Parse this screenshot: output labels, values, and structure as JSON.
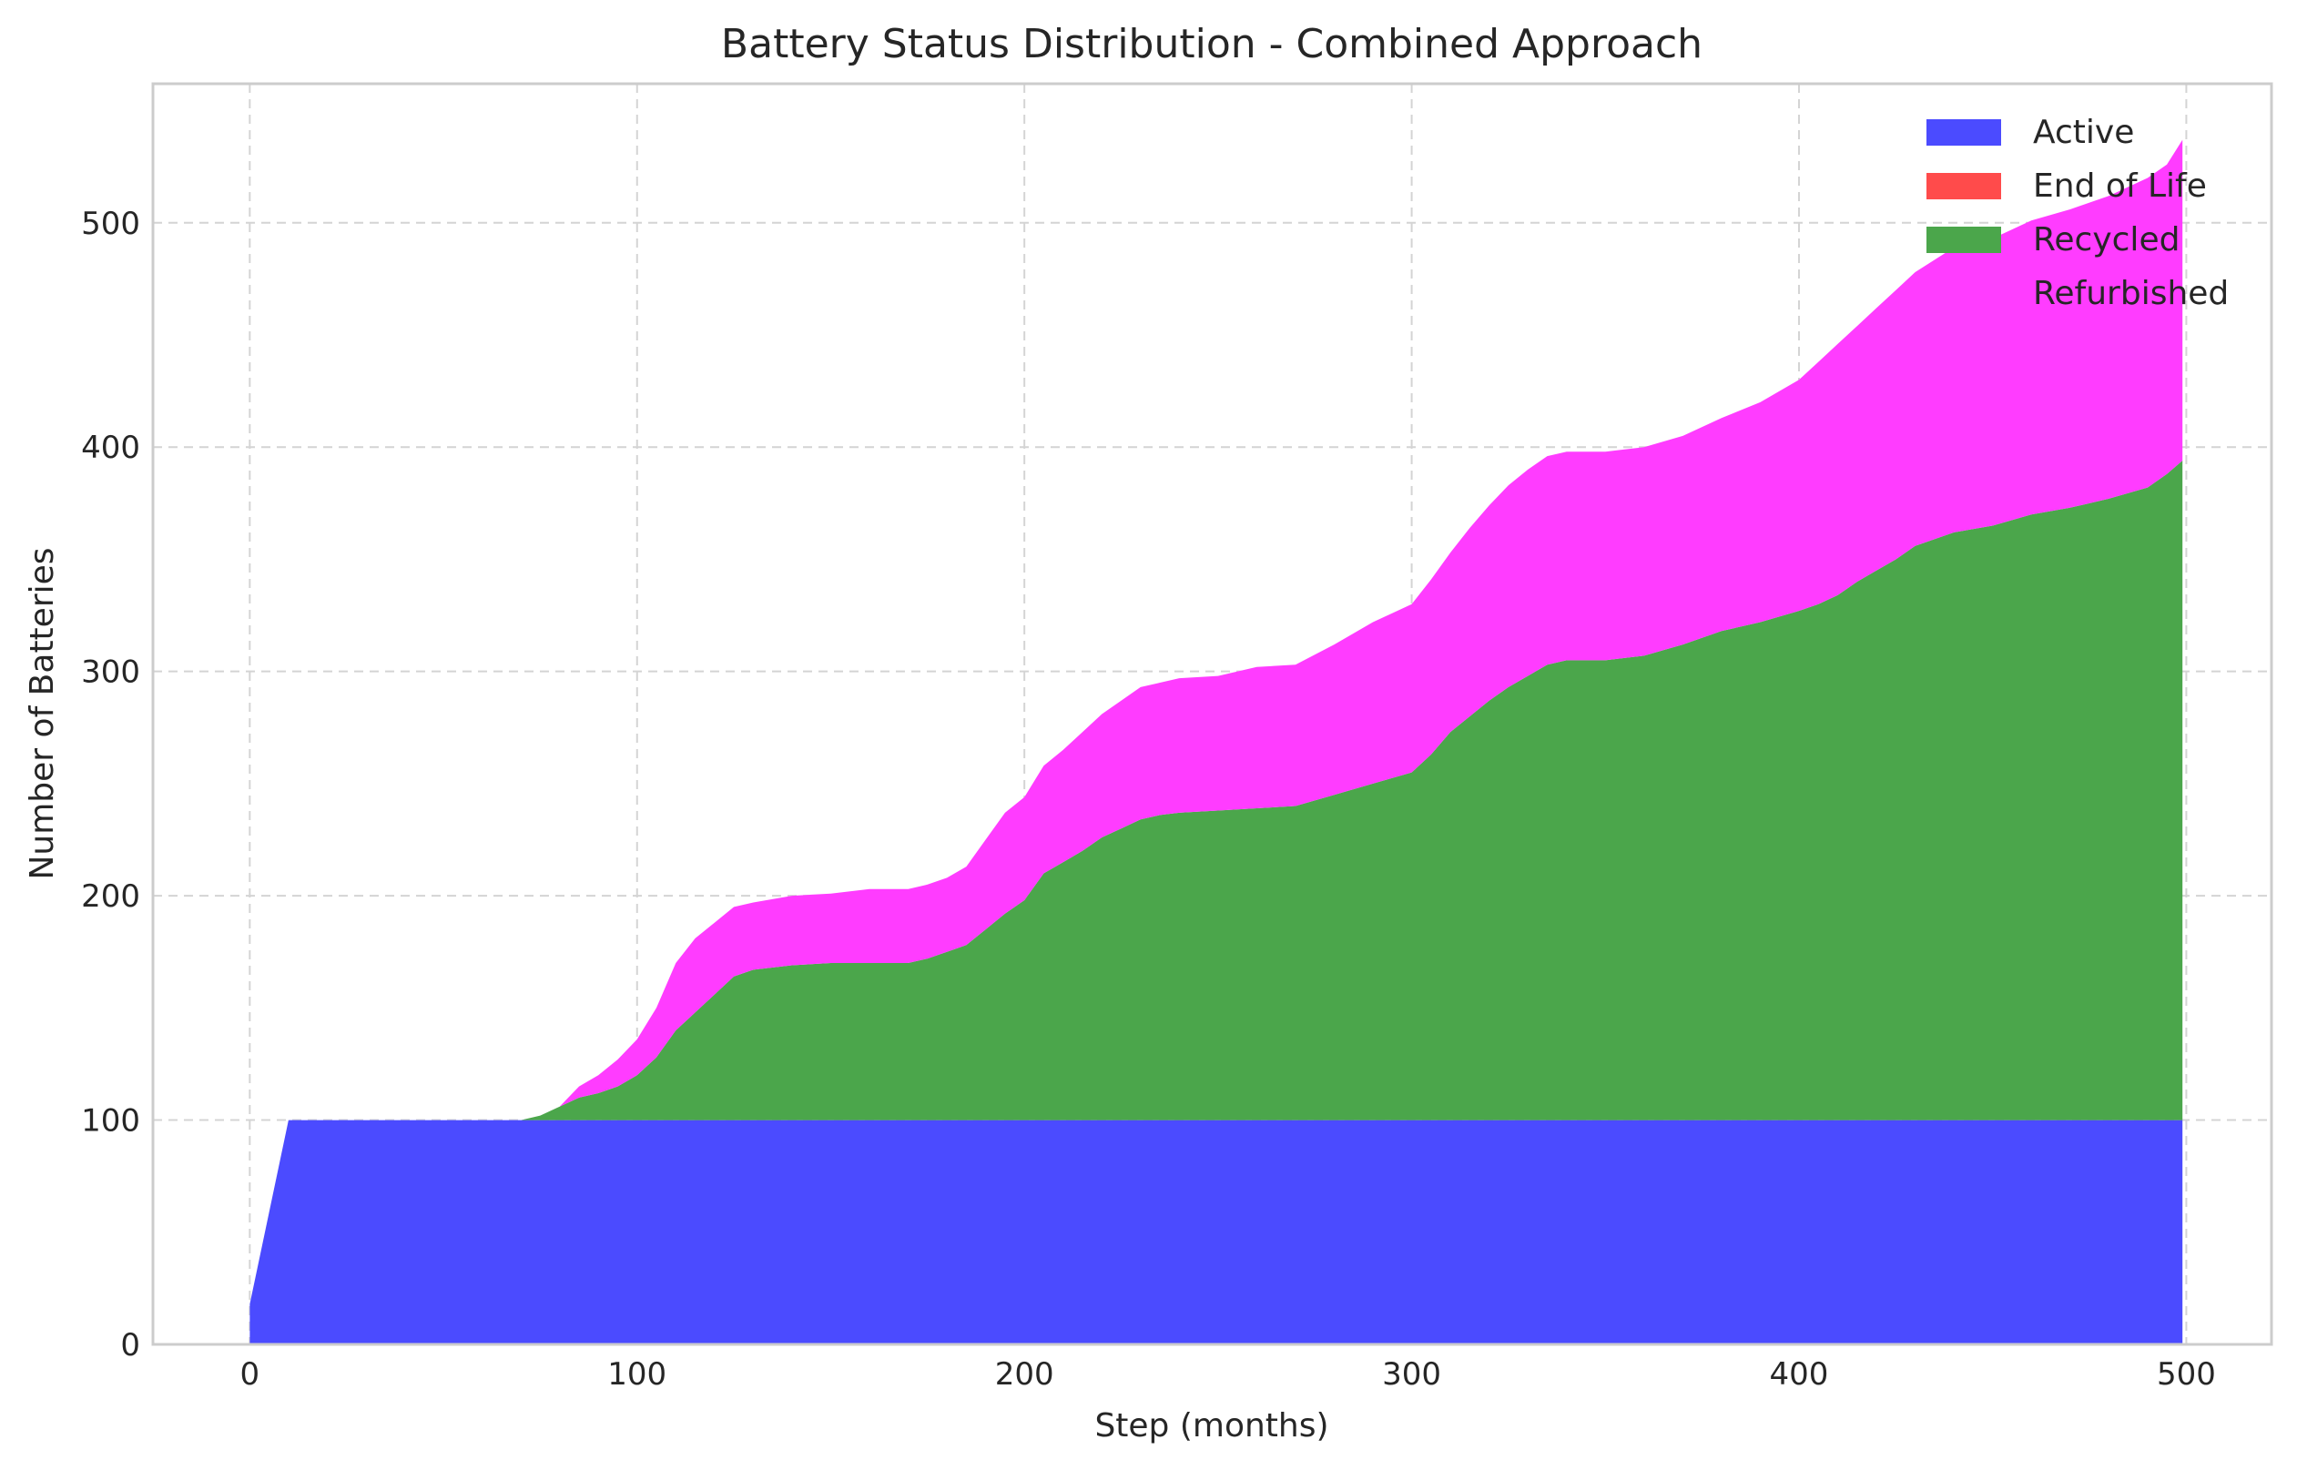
{
  "chart_data": {
    "type": "area",
    "stacked": true,
    "title": "Battery Status Distribution - Combined Approach",
    "xlabel": "Step (months)",
    "ylabel": "Number of Batteries",
    "xlim": [
      -25,
      522
    ],
    "ylim": [
      0,
      562
    ],
    "xticks": [
      0,
      100,
      200,
      300,
      400,
      500
    ],
    "yticks": [
      0,
      100,
      200,
      300,
      400,
      500
    ],
    "grid": true,
    "legend_position": "top-right",
    "x": [
      0,
      10,
      20,
      40,
      60,
      70,
      75,
      80,
      85,
      90,
      95,
      100,
      105,
      110,
      115,
      120,
      125,
      130,
      140,
      150,
      160,
      170,
      175,
      180,
      185,
      190,
      195,
      200,
      205,
      210,
      215,
      220,
      225,
      230,
      235,
      240,
      250,
      260,
      270,
      280,
      290,
      300,
      305,
      310,
      315,
      320,
      325,
      330,
      335,
      340,
      350,
      360,
      370,
      380,
      390,
      400,
      405,
      410,
      415,
      420,
      425,
      430,
      440,
      450,
      460,
      470,
      480,
      490,
      495,
      499
    ],
    "series": [
      {
        "name": "Active",
        "color": "#4b4bff",
        "values": [
          18,
          100,
          100,
          100,
          100,
          100,
          100,
          100,
          100,
          100,
          100,
          100,
          100,
          100,
          100,
          100,
          100,
          100,
          100,
          100,
          100,
          100,
          100,
          100,
          100,
          100,
          100,
          100,
          100,
          100,
          100,
          100,
          100,
          100,
          100,
          100,
          100,
          100,
          100,
          100,
          100,
          100,
          100,
          100,
          100,
          100,
          100,
          100,
          100,
          100,
          100,
          100,
          100,
          100,
          100,
          100,
          100,
          100,
          100,
          100,
          100,
          100,
          100,
          100,
          100,
          100,
          100,
          100,
          100,
          100
        ]
      },
      {
        "name": "End of Life",
        "color": "#ff4b4b",
        "values": [
          0,
          0,
          0,
          0,
          0,
          0,
          0,
          0,
          0,
          0,
          0,
          0,
          0,
          0,
          0,
          0,
          0,
          0,
          0,
          0,
          0,
          0,
          0,
          0,
          0,
          0,
          0,
          0,
          0,
          0,
          0,
          0,
          0,
          0,
          0,
          0,
          0,
          0,
          0,
          0,
          0,
          0,
          0,
          0,
          0,
          0,
          0,
          0,
          0,
          0,
          0,
          0,
          0,
          0,
          0,
          0,
          0,
          0,
          0,
          0,
          0,
          0,
          0,
          0,
          0,
          0,
          0,
          0,
          0,
          0
        ]
      },
      {
        "name": "Recycled",
        "color": "#4ba64b",
        "values": [
          0,
          0,
          0,
          0,
          0,
          0,
          2,
          6,
          10,
          12,
          15,
          20,
          28,
          40,
          48,
          56,
          64,
          67,
          69,
          70,
          70,
          70,
          72,
          75,
          78,
          85,
          92,
          98,
          110,
          115,
          120,
          126,
          130,
          134,
          136,
          137,
          138,
          139,
          140,
          145,
          150,
          155,
          163,
          173,
          180,
          187,
          193,
          198,
          203,
          205,
          205,
          207,
          212,
          218,
          222,
          227,
          230,
          234,
          240,
          245,
          250,
          256,
          262,
          265,
          270,
          273,
          277,
          282,
          288,
          294
        ]
      },
      {
        "name": "Refurbished",
        "color": "#ff3cff",
        "values": [
          0,
          0,
          0,
          0,
          0,
          0,
          0,
          0,
          5,
          8,
          12,
          16,
          22,
          30,
          33,
          32,
          31,
          30,
          31,
          31,
          33,
          33,
          33,
          33,
          35,
          40,
          45,
          46,
          48,
          50,
          53,
          55,
          57,
          59,
          59,
          60,
          60,
          63,
          63,
          67,
          72,
          75,
          78,
          80,
          84,
          87,
          90,
          92,
          93,
          93,
          93,
          93,
          93,
          95,
          98,
          103,
          108,
          112,
          114,
          117,
          120,
          122,
          127,
          128,
          131,
          133,
          135,
          138,
          138,
          143
        ]
      }
    ]
  }
}
